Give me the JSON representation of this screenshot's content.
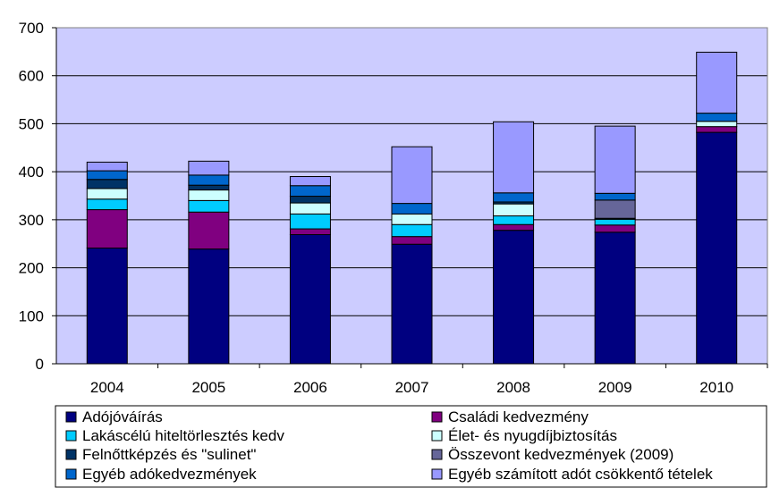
{
  "chart_data": {
    "type": "bar",
    "stacked": true,
    "title": "",
    "xlabel": "",
    "ylabel": "",
    "ylim": [
      0,
      700
    ],
    "yticks": [
      0,
      100,
      200,
      300,
      400,
      500,
      600,
      700
    ],
    "grid": true,
    "legend_position": "bottom",
    "categories": [
      "2004",
      "2005",
      "2006",
      "2007",
      "2008",
      "2009",
      "2010"
    ],
    "series": [
      {
        "name": "Adójóváírás",
        "color": "#000080",
        "values": [
          241,
          239,
          269,
          249,
          278,
          274,
          482
        ]
      },
      {
        "name": "Családi kedvezmény",
        "color": "#800080",
        "values": [
          80,
          77,
          12,
          16,
          12,
          15,
          12
        ]
      },
      {
        "name": "Lakáscélú hiteltörlesztés kedv",
        "color": "#00CCFF",
        "values": [
          22,
          24,
          31,
          25,
          18,
          12,
          0
        ]
      },
      {
        "name": "Élet- és nyugdíjbiztosítás",
        "color": "#CCFFFF",
        "values": [
          22,
          22,
          23,
          22,
          25,
          0,
          11
        ]
      },
      {
        "name": "Felnőttképzés és \"sulinet\"",
        "color": "#003366",
        "values": [
          19,
          10,
          14,
          0,
          4,
          2,
          0
        ]
      },
      {
        "name": "Összevont kedvezmények (2009)",
        "color": "#666699",
        "values": [
          0,
          0,
          0,
          0,
          0,
          38,
          0
        ]
      },
      {
        "name": "Egyéb adókedvezmények",
        "color": "#0066CC",
        "values": [
          18,
          21,
          22,
          22,
          19,
          14,
          17
        ]
      },
      {
        "name": "Egyéb számított adót csökkentő tételek",
        "color": "#9999FF",
        "values": [
          18,
          29,
          19,
          118,
          148,
          140,
          127
        ]
      }
    ],
    "plot_background": "#CCCCFF"
  }
}
